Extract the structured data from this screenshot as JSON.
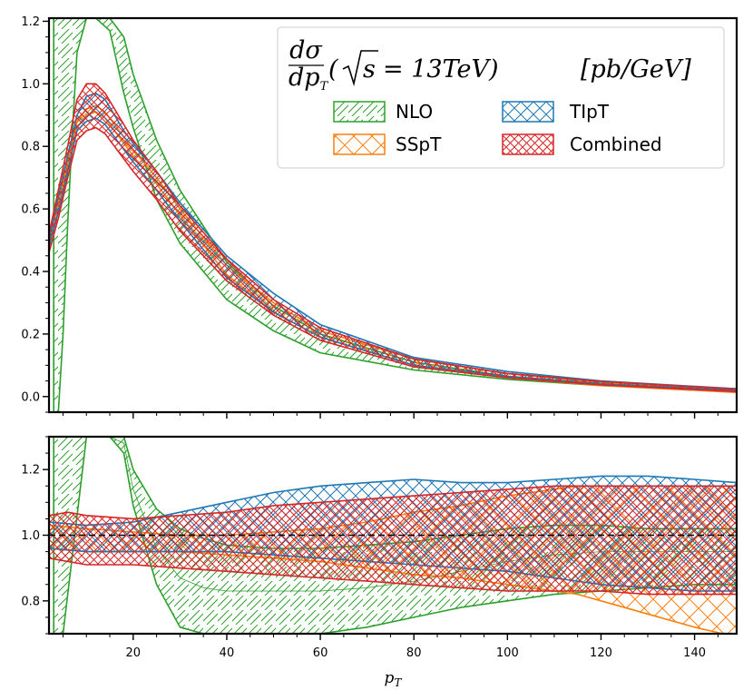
{
  "chart_data": [
    {
      "type": "area",
      "panel": "top",
      "xlim": [
        2,
        149
      ],
      "ylim": [
        -0.05,
        1.21
      ],
      "yticks": [
        0.0,
        0.2,
        0.4,
        0.6,
        0.8,
        1.0,
        1.2
      ],
      "ytick_labels": [
        "0.0",
        "0.2",
        "0.4",
        "0.6",
        "0.8",
        "1.0",
        "1.2"
      ],
      "legend": {
        "title": "dσ/dp_T (√s = 13TeV) [pb/GeV]",
        "title_parts": {
          "num": "dσ",
          "den_base": "dp",
          "den_sub": "T",
          "rest_open": "(",
          "sqrt_arg": "s",
          "equals": "= 13TeV)",
          "units": "[pb/GeV]"
        },
        "placement": "top-right"
      },
      "series": [
        {
          "name": "NLO",
          "color": "#2ca02c",
          "hatch": "diag",
          "x": [
            3,
            4,
            5,
            6,
            7,
            8,
            10,
            12,
            15,
            18,
            20,
            25,
            30,
            40,
            50,
            60,
            80,
            100,
            120,
            149
          ],
          "upper": [
            1.21,
            1.21,
            1.21,
            1.21,
            1.21,
            1.21,
            1.21,
            1.21,
            1.21,
            1.15,
            1.03,
            0.82,
            0.66,
            0.43,
            0.29,
            0.2,
            0.11,
            0.065,
            0.042,
            0.025
          ],
          "lower": [
            -0.05,
            -0.05,
            0.2,
            0.55,
            0.85,
            1.1,
            1.21,
            1.21,
            1.17,
            0.97,
            0.86,
            0.63,
            0.49,
            0.31,
            0.21,
            0.14,
            0.085,
            0.055,
            0.035,
            0.02
          ]
        },
        {
          "name": "SSpT",
          "color": "#ff7f0e",
          "hatch": "cross",
          "x": [
            2,
            4,
            6,
            8,
            10,
            12,
            14,
            16,
            18,
            20,
            25,
            30,
            40,
            50,
            60,
            80,
            100,
            120,
            149
          ],
          "upper": [
            0.5,
            0.62,
            0.75,
            0.88,
            0.92,
            0.93,
            0.91,
            0.87,
            0.83,
            0.79,
            0.7,
            0.6,
            0.42,
            0.3,
            0.21,
            0.12,
            0.073,
            0.046,
            0.023
          ],
          "lower": [
            0.49,
            0.6,
            0.73,
            0.86,
            0.9,
            0.91,
            0.89,
            0.85,
            0.81,
            0.77,
            0.68,
            0.58,
            0.39,
            0.27,
            0.19,
            0.1,
            0.06,
            0.035,
            0.013
          ]
        },
        {
          "name": "TIpT",
          "color": "#1f77b4",
          "hatch": "cross",
          "x": [
            2,
            4,
            6,
            8,
            10,
            12,
            14,
            16,
            18,
            20,
            25,
            30,
            40,
            50,
            60,
            80,
            100,
            120,
            149
          ],
          "upper": [
            0.5,
            0.64,
            0.77,
            0.9,
            0.96,
            0.97,
            0.95,
            0.9,
            0.85,
            0.81,
            0.72,
            0.62,
            0.45,
            0.33,
            0.23,
            0.125,
            0.08,
            0.05,
            0.025
          ],
          "lower": [
            0.48,
            0.59,
            0.72,
            0.85,
            0.88,
            0.89,
            0.87,
            0.83,
            0.79,
            0.75,
            0.66,
            0.56,
            0.38,
            0.27,
            0.19,
            0.1,
            0.065,
            0.04,
            0.02
          ]
        },
        {
          "name": "Combined",
          "color": "#d62728",
          "hatch": "crossdense",
          "x": [
            2,
            4,
            6,
            8,
            10,
            12,
            14,
            16,
            18,
            20,
            25,
            30,
            40,
            50,
            60,
            80,
            100,
            120,
            149
          ],
          "upper": [
            0.52,
            0.66,
            0.8,
            0.95,
            1.0,
            1.0,
            0.97,
            0.92,
            0.87,
            0.82,
            0.72,
            0.61,
            0.44,
            0.31,
            0.22,
            0.12,
            0.074,
            0.048,
            0.024
          ],
          "lower": [
            0.46,
            0.57,
            0.7,
            0.82,
            0.85,
            0.86,
            0.84,
            0.8,
            0.76,
            0.72,
            0.63,
            0.53,
            0.37,
            0.26,
            0.18,
            0.095,
            0.06,
            0.037,
            0.016
          ]
        }
      ]
    },
    {
      "type": "area",
      "panel": "bottom",
      "xlabel": "p_T",
      "xlabel_parts": {
        "base": "p",
        "sub": "T"
      },
      "xlim": [
        2,
        149
      ],
      "ylim": [
        0.7,
        1.3
      ],
      "yticks": [
        0.8,
        1.0,
        1.2
      ],
      "ytick_labels": [
        "0.8",
        "1.0",
        "1.2"
      ],
      "xticks": [
        20,
        40,
        60,
        80,
        100,
        120,
        140
      ],
      "xtick_labels": [
        "20",
        "40",
        "60",
        "80",
        "100",
        "120",
        "140"
      ],
      "reference_line": 1.0,
      "series": [
        {
          "name": "NLO",
          "color": "#2ca02c",
          "hatch": "diag",
          "x": [
            3,
            4,
            5,
            10,
            15,
            18,
            20,
            25,
            30,
            35,
            40,
            50,
            60,
            70,
            80,
            90,
            100,
            110,
            120,
            130,
            140,
            149
          ],
          "upper": [
            1.3,
            1.3,
            1.3,
            1.3,
            1.3,
            1.3,
            1.2,
            1.08,
            1.02,
            0.99,
            0.97,
            0.96,
            0.96,
            0.97,
            0.98,
            1.0,
            1.02,
            1.03,
            1.03,
            1.02,
            1.02,
            1.02
          ],
          "lower": [
            0.7,
            0.7,
            0.7,
            1.3,
            1.3,
            1.25,
            1.09,
            0.85,
            0.72,
            0.7,
            0.7,
            0.7,
            0.7,
            0.72,
            0.75,
            0.78,
            0.8,
            0.82,
            0.83,
            0.84,
            0.85,
            0.85
          ],
          "center": [
            1.3,
            1.3,
            1.3,
            1.3,
            1.3,
            1.28,
            1.14,
            0.96,
            0.87,
            0.84,
            0.83,
            0.83,
            0.83,
            0.84,
            0.86,
            0.89,
            0.92,
            0.94,
            0.95,
            0.95,
            0.95,
            0.95
          ]
        },
        {
          "name": "SSpT",
          "color": "#ff7f0e",
          "hatch": "cross",
          "x": [
            2,
            10,
            20,
            30,
            40,
            50,
            60,
            70,
            80,
            90,
            100,
            110,
            115,
            120,
            130,
            140,
            149
          ],
          "upper": [
            1.03,
            1.02,
            1.01,
            1.0,
            1.0,
            1.01,
            1.02,
            1.04,
            1.07,
            1.09,
            1.12,
            1.14,
            1.15,
            1.15,
            1.15,
            1.15,
            1.15
          ],
          "lower": [
            0.96,
            0.95,
            0.95,
            0.95,
            0.94,
            0.93,
            0.92,
            0.9,
            0.88,
            0.87,
            0.85,
            0.83,
            0.82,
            0.8,
            0.76,
            0.72,
            0.69
          ]
        },
        {
          "name": "TIpT",
          "color": "#1f77b4",
          "hatch": "cross",
          "x": [
            2,
            10,
            20,
            30,
            40,
            50,
            60,
            70,
            80,
            90,
            100,
            110,
            120,
            130,
            140,
            149
          ],
          "upper": [
            1.04,
            1.03,
            1.04,
            1.07,
            1.1,
            1.13,
            1.15,
            1.16,
            1.17,
            1.16,
            1.16,
            1.17,
            1.18,
            1.18,
            1.17,
            1.16
          ],
          "lower": [
            0.96,
            0.95,
            0.95,
            0.95,
            0.95,
            0.94,
            0.93,
            0.92,
            0.91,
            0.9,
            0.89,
            0.87,
            0.85,
            0.84,
            0.83,
            0.83
          ]
        },
        {
          "name": "Combined",
          "color": "#d62728",
          "hatch": "crossdense",
          "x": [
            2,
            6,
            10,
            20,
            30,
            40,
            50,
            60,
            70,
            80,
            90,
            100,
            110,
            120,
            130,
            140,
            149
          ],
          "upper": [
            1.06,
            1.07,
            1.06,
            1.05,
            1.06,
            1.07,
            1.09,
            1.1,
            1.11,
            1.12,
            1.13,
            1.14,
            1.15,
            1.15,
            1.15,
            1.15,
            1.15
          ],
          "lower": [
            0.93,
            0.92,
            0.91,
            0.91,
            0.9,
            0.89,
            0.88,
            0.87,
            0.86,
            0.85,
            0.84,
            0.83,
            0.83,
            0.83,
            0.82,
            0.82,
            0.82
          ]
        }
      ]
    }
  ]
}
